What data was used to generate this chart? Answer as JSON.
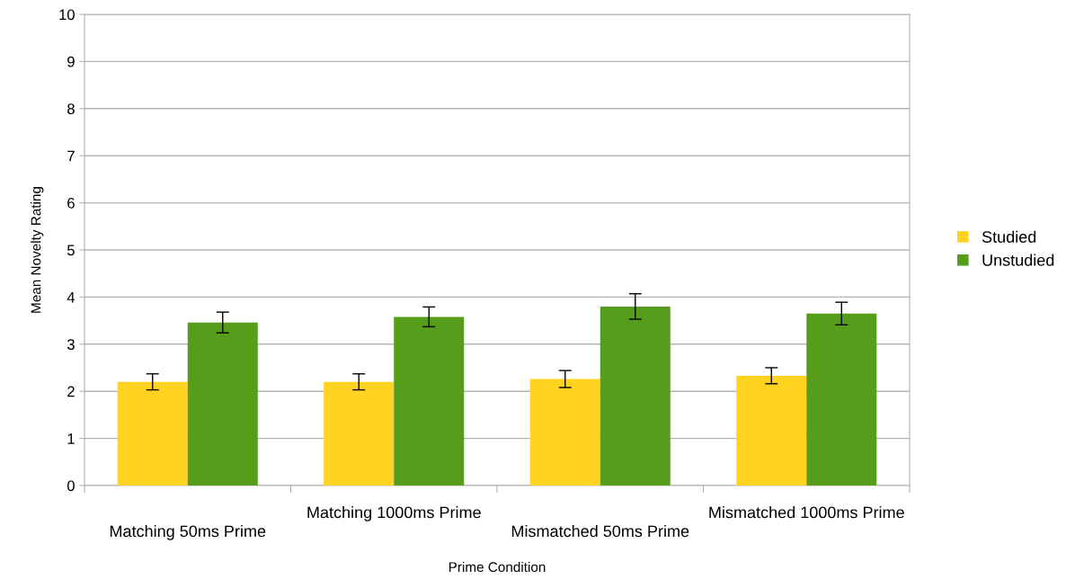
{
  "chart_data": {
    "type": "bar",
    "xlabel": "Prime Condition",
    "ylabel": "Mean Novelty Rating",
    "categories": [
      "Matching 50ms Prime",
      "Matching 1000ms Prime",
      "Mismatched 50ms Prime",
      "Mismatched 1000ms Prime"
    ],
    "series": [
      {
        "name": "Studied",
        "color": "#ffd320",
        "values": [
          2.2,
          2.2,
          2.26,
          2.33
        ],
        "errors": [
          0.17,
          0.17,
          0.18,
          0.17
        ]
      },
      {
        "name": "Unstudied",
        "color": "#579d1c",
        "values": [
          3.46,
          3.58,
          3.8,
          3.65
        ],
        "errors": [
          0.22,
          0.21,
          0.27,
          0.24
        ]
      }
    ],
    "ylim": [
      0,
      10
    ],
    "yticks": [
      0,
      1,
      2,
      3,
      4,
      5,
      6,
      7,
      8,
      9,
      10
    ],
    "grid": "y",
    "legend": "right"
  }
}
